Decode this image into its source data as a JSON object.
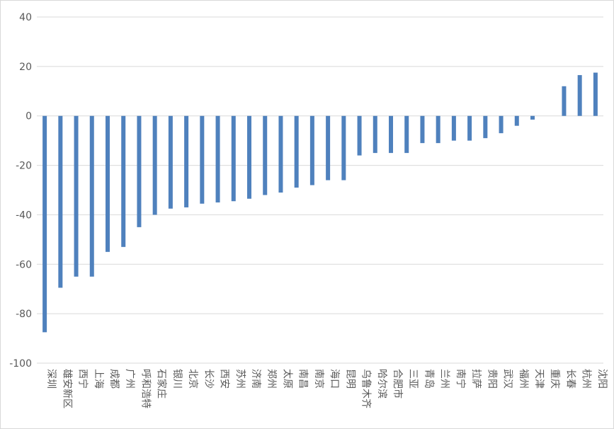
{
  "chart_data": {
    "type": "bar",
    "categories": [
      "深圳",
      "雄安新区",
      "西宁",
      "上海",
      "成都",
      "广州",
      "呼和浩特",
      "石家庄",
      "银川",
      "北京",
      "长沙",
      "西安",
      "苏州",
      "济南",
      "郑州",
      "太原",
      "南昌",
      "南京",
      "海口",
      "昆明",
      "乌鲁木齐",
      "哈尔滨",
      "合肥市",
      "三亚",
      "青岛",
      "兰州",
      "南宁",
      "拉萨",
      "贵阳",
      "武汉",
      "福州",
      "天津",
      "重庆",
      "长春",
      "杭州",
      "沈阳"
    ],
    "values": [
      -87.5,
      -69.5,
      -65,
      -65,
      -55,
      -53,
      -45,
      -40,
      -37.5,
      -37,
      -35.5,
      -35,
      -34.5,
      -33.5,
      -32,
      -31,
      -29,
      -28,
      -26,
      -26,
      -16,
      -15,
      -15,
      -15,
      -11,
      -11,
      -10,
      -10,
      -9,
      -7,
      -4,
      -1.5,
      0,
      12,
      16.5,
      17.5
    ],
    "yticks": [
      "40",
      "20",
      "0",
      "-20",
      "-40",
      "-60",
      "-80",
      "-100"
    ],
    "ylim": [
      -100,
      40
    ],
    "grid": true,
    "bar_color": "#4f81bd",
    "grid_color": "#d9d9d9",
    "title": "",
    "xlabel": "",
    "ylabel": ""
  }
}
